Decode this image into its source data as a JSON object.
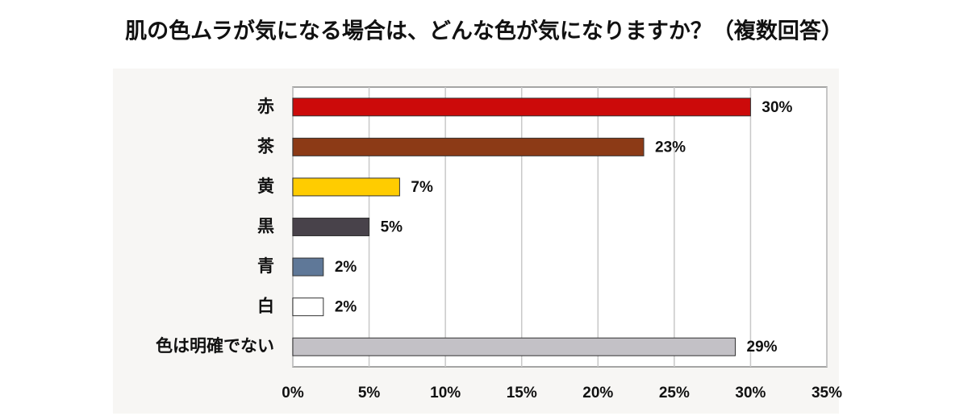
{
  "chart_data": {
    "type": "bar",
    "orientation": "horizontal",
    "title": "肌の色ムラが気になる場合は、どんな色が気になりますか？（複数回答）",
    "categories": [
      "赤",
      "茶",
      "黄",
      "黒",
      "青",
      "白",
      "色は明確でない"
    ],
    "values": [
      30,
      23,
      7,
      5,
      2,
      2,
      29
    ],
    "value_labels": [
      "30%",
      "23%",
      "7%",
      "5%",
      "2%",
      "2%",
      "29%"
    ],
    "colors": [
      "#cc0a0a",
      "#8c3a16",
      "#ffcc00",
      "#48424a",
      "#5f7898",
      "#ffffff",
      "#c3c1c6"
    ],
    "xlim": [
      0,
      35
    ],
    "xticks": [
      {
        "value": 0,
        "label": "0%"
      },
      {
        "value": 5,
        "label": "5%"
      },
      {
        "value": 10,
        "label": "10%"
      },
      {
        "value": 15,
        "label": "15%"
      },
      {
        "value": 20,
        "label": "20%"
      },
      {
        "value": 25,
        "label": "25%"
      },
      {
        "value": 30,
        "label": "30%"
      },
      {
        "value": 35,
        "label": "35%"
      }
    ],
    "grid": true
  }
}
